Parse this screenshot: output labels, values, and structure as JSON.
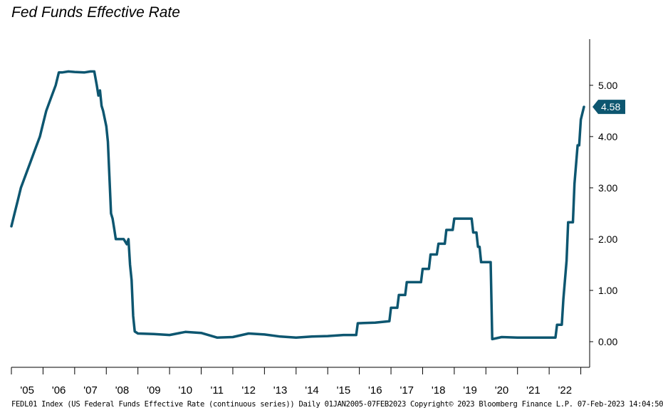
{
  "title": "Fed Funds Effective Rate",
  "footer": "FEDL01 Index (US Federal Funds Effective Rate (continuous series)) Daily 01JAN2005-07FEB2023 Copyright© 2023 Bloomberg Finance L.P. 07-Feb-2023 14:04:50",
  "colors": {
    "line": "#0d5670",
    "badge": "#0d5670",
    "axis": "#000000"
  },
  "chart_data": {
    "type": "line",
    "title": "Fed Funds Effective Rate",
    "xlabel": "",
    "ylabel": "",
    "ylim": [
      -0.5,
      5.9
    ],
    "xlim": [
      2005.0,
      2023.1
    ],
    "y_axis_side": "right",
    "grid": false,
    "yticks": [
      "5.00",
      "4.00",
      "3.00",
      "2.00",
      "1.00",
      "0.00"
    ],
    "ytick_values": [
      5,
      4,
      3,
      2,
      1,
      0
    ],
    "xticks": [
      "'05",
      "'06",
      "'07",
      "'08",
      "'09",
      "'10",
      "'11",
      "'12",
      "'13",
      "'14",
      "'15",
      "'16",
      "'17",
      "'18",
      "'19",
      "'20",
      "'21",
      "'22"
    ],
    "last_value_label": "4.58",
    "series": [
      {
        "x": [
          2005.0,
          2005.1,
          2005.2,
          2005.3,
          2005.45,
          2005.6,
          2005.75,
          2005.9,
          2006.0,
          2006.1,
          2006.25,
          2006.4,
          2006.5,
          2006.6,
          2006.8,
          2007.0,
          2007.3,
          2007.5,
          2007.62,
          2007.7,
          2007.75,
          2007.8,
          2007.85,
          2007.9,
          2008.0,
          2008.05,
          2008.1,
          2008.15,
          2008.2,
          2008.25,
          2008.3,
          2008.4,
          2008.55,
          2008.65,
          2008.7,
          2008.75,
          2008.8,
          2008.85,
          2008.9,
          2009.0,
          2009.5,
          2010.0,
          2010.5,
          2011.0,
          2011.5,
          2012.0,
          2012.5,
          2013.0,
          2013.5,
          2014.0,
          2014.5,
          2015.0,
          2015.5,
          2015.9,
          2015.95,
          2016.5,
          2016.95,
          2017.0,
          2017.2,
          2017.25,
          2017.45,
          2017.5,
          2017.95,
          2018.0,
          2018.2,
          2018.25,
          2018.45,
          2018.5,
          2018.7,
          2018.75,
          2018.95,
          2019.0,
          2019.3,
          2019.55,
          2019.6,
          2019.7,
          2019.75,
          2019.8,
          2019.85,
          2020.0,
          2020.15,
          2020.2,
          2020.5,
          2021.0,
          2021.5,
          2022.0,
          2022.2,
          2022.25,
          2022.4,
          2022.45,
          2022.55,
          2022.6,
          2022.75,
          2022.8,
          2022.9,
          2022.95,
          2023.0,
          2023.1
        ],
        "y": [
          2.25,
          2.5,
          2.75,
          3.0,
          3.25,
          3.5,
          3.75,
          4.0,
          4.25,
          4.5,
          4.75,
          5.0,
          5.25,
          5.25,
          5.27,
          5.26,
          5.25,
          5.27,
          5.27,
          5.0,
          4.8,
          4.9,
          4.6,
          4.5,
          4.2,
          3.9,
          3.2,
          2.5,
          2.4,
          2.2,
          2.0,
          2.0,
          2.0,
          1.9,
          2.0,
          1.5,
          1.2,
          0.5,
          0.2,
          0.16,
          0.15,
          0.13,
          0.19,
          0.17,
          0.08,
          0.09,
          0.16,
          0.14,
          0.1,
          0.08,
          0.1,
          0.11,
          0.13,
          0.13,
          0.36,
          0.37,
          0.4,
          0.66,
          0.66,
          0.91,
          0.91,
          1.16,
          1.16,
          1.42,
          1.42,
          1.7,
          1.7,
          1.91,
          1.91,
          2.18,
          2.18,
          2.4,
          2.4,
          2.4,
          2.13,
          2.13,
          1.85,
          1.85,
          1.55,
          1.55,
          1.55,
          0.05,
          0.09,
          0.08,
          0.08,
          0.08,
          0.08,
          0.33,
          0.33,
          0.83,
          1.58,
          2.33,
          2.33,
          3.08,
          3.83,
          3.83,
          4.33,
          4.58
        ]
      }
    ]
  }
}
